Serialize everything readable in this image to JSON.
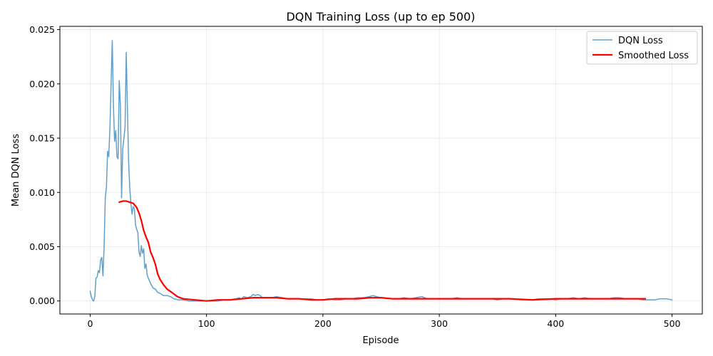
{
  "chart_data": {
    "type": "line",
    "title": "DQN Training Loss (up to ep 500)",
    "xlabel": "Episode",
    "ylabel": "Mean DQN Loss",
    "xlim": [
      -26,
      526
    ],
    "ylim": [
      -0.0012,
      0.0253
    ],
    "x_ticks": [
      0,
      100,
      200,
      300,
      400,
      500
    ],
    "y_ticks": [
      0.0,
      0.005,
      0.01,
      0.015,
      0.02,
      0.025
    ],
    "x_tick_labels": [
      "0",
      "100",
      "200",
      "300",
      "400",
      "500"
    ],
    "y_tick_labels": [
      "0.000",
      "0.005",
      "0.010",
      "0.015",
      "0.020",
      "0.025"
    ],
    "grid": true,
    "legend_position": "top-right",
    "series": [
      {
        "name": "DQN Loss",
        "color": "#1f77b4",
        "opacity": 0.7,
        "width": 1.5,
        "points": [
          [
            0,
            0.0009
          ],
          [
            1,
            0.0004
          ],
          [
            2,
            0.0001
          ],
          [
            3,
            0.0
          ],
          [
            4,
            0.0004
          ],
          [
            5,
            0.0021
          ],
          [
            6,
            0.0022
          ],
          [
            7,
            0.0028
          ],
          [
            8,
            0.0026
          ],
          [
            9,
            0.0038
          ],
          [
            10,
            0.004
          ],
          [
            11,
            0.0023
          ],
          [
            12,
            0.005
          ],
          [
            13,
            0.0095
          ],
          [
            14,
            0.0105
          ],
          [
            15,
            0.0138
          ],
          [
            16,
            0.0133
          ],
          [
            17,
            0.016
          ],
          [
            18,
            0.02
          ],
          [
            19,
            0.024
          ],
          [
            20,
            0.018
          ],
          [
            21,
            0.0147
          ],
          [
            22,
            0.0157
          ],
          [
            23,
            0.0133
          ],
          [
            24,
            0.0131
          ],
          [
            25,
            0.0203
          ],
          [
            26,
            0.018
          ],
          [
            27,
            0.0095
          ],
          [
            28,
            0.014
          ],
          [
            29,
            0.015
          ],
          [
            30,
            0.016
          ],
          [
            31,
            0.0229
          ],
          [
            32,
            0.018
          ],
          [
            33,
            0.013
          ],
          [
            34,
            0.0105
          ],
          [
            35,
            0.009
          ],
          [
            36,
            0.008
          ],
          [
            37,
            0.0087
          ],
          [
            38,
            0.0085
          ],
          [
            39,
            0.007
          ],
          [
            40,
            0.0066
          ],
          [
            41,
            0.0063
          ],
          [
            42,
            0.0045
          ],
          [
            43,
            0.0041
          ],
          [
            44,
            0.0051
          ],
          [
            45,
            0.0044
          ],
          [
            46,
            0.0048
          ],
          [
            47,
            0.003
          ],
          [
            48,
            0.0034
          ],
          [
            49,
            0.0024
          ],
          [
            50,
            0.0021
          ],
          [
            52,
            0.0016
          ],
          [
            54,
            0.0012
          ],
          [
            56,
            0.0011
          ],
          [
            58,
            0.0008
          ],
          [
            60,
            0.0007
          ],
          [
            63,
            0.0005
          ],
          [
            66,
            0.0005
          ],
          [
            69,
            0.0004
          ],
          [
            72,
            0.0002
          ],
          [
            76,
            0.0001
          ],
          [
            80,
            0.0001
          ],
          [
            85,
            0.0
          ],
          [
            90,
            0.0
          ],
          [
            95,
            0.0
          ],
          [
            100,
            0.0
          ],
          [
            105,
            0.0
          ],
          [
            110,
            0.0
          ],
          [
            115,
            0.0001
          ],
          [
            120,
            0.0001
          ],
          [
            125,
            0.0002
          ],
          [
            128,
            0.0003
          ],
          [
            130,
            0.0002
          ],
          [
            132,
            0.0004
          ],
          [
            135,
            0.0003
          ],
          [
            138,
            0.0004
          ],
          [
            140,
            0.0006
          ],
          [
            142,
            0.0005
          ],
          [
            144,
            0.0006
          ],
          [
            146,
            0.0005
          ],
          [
            148,
            0.0003
          ],
          [
            152,
            0.0003
          ],
          [
            156,
            0.0003
          ],
          [
            160,
            0.0004
          ],
          [
            165,
            0.0003
          ],
          [
            170,
            0.0002
          ],
          [
            175,
            0.0002
          ],
          [
            180,
            0.0002
          ],
          [
            185,
            0.0002
          ],
          [
            190,
            0.0002
          ],
          [
            195,
            0.0001
          ],
          [
            200,
            0.0001
          ],
          [
            205,
            0.0002
          ],
          [
            210,
            0.0001
          ],
          [
            215,
            0.0001
          ],
          [
            220,
            0.0002
          ],
          [
            225,
            0.0002
          ],
          [
            230,
            0.0003
          ],
          [
            235,
            0.0003
          ],
          [
            240,
            0.0004
          ],
          [
            243,
            0.0005
          ],
          [
            246,
            0.0004
          ],
          [
            250,
            0.0003
          ],
          [
            255,
            0.0002
          ],
          [
            260,
            0.0002
          ],
          [
            265,
            0.0002
          ],
          [
            270,
            0.0003
          ],
          [
            275,
            0.0002
          ],
          [
            280,
            0.0003
          ],
          [
            285,
            0.0004
          ],
          [
            290,
            0.0002
          ],
          [
            295,
            0.0002
          ],
          [
            300,
            0.0002
          ],
          [
            305,
            0.0002
          ],
          [
            310,
            0.0002
          ],
          [
            315,
            0.0003
          ],
          [
            320,
            0.0002
          ],
          [
            325,
            0.0002
          ],
          [
            330,
            0.0002
          ],
          [
            335,
            0.0002
          ],
          [
            340,
            0.0002
          ],
          [
            345,
            0.0002
          ],
          [
            350,
            0.0001
          ],
          [
            355,
            0.0002
          ],
          [
            360,
            0.0002
          ],
          [
            365,
            0.0002
          ],
          [
            370,
            0.0001
          ],
          [
            375,
            0.0001
          ],
          [
            380,
            0.0001
          ],
          [
            385,
            0.0002
          ],
          [
            390,
            0.0002
          ],
          [
            395,
            0.0002
          ],
          [
            400,
            0.0001
          ],
          [
            405,
            0.0002
          ],
          [
            410,
            0.0002
          ],
          [
            415,
            0.0003
          ],
          [
            420,
            0.0002
          ],
          [
            425,
            0.0003
          ],
          [
            430,
            0.0002
          ],
          [
            435,
            0.0002
          ],
          [
            440,
            0.0002
          ],
          [
            445,
            0.0002
          ],
          [
            450,
            0.0003
          ],
          [
            455,
            0.0003
          ],
          [
            460,
            0.0002
          ],
          [
            465,
            0.0002
          ],
          [
            470,
            0.0002
          ],
          [
            475,
            0.0001
          ],
          [
            480,
            0.0001
          ],
          [
            485,
            0.0001
          ],
          [
            490,
            0.0002
          ],
          [
            495,
            0.0002
          ],
          [
            500,
            0.0001
          ]
        ]
      },
      {
        "name": "Smoothed Loss",
        "color": "#ff0000",
        "opacity": 1.0,
        "width": 2.2,
        "points": [
          [
            25,
            0.0091
          ],
          [
            28,
            0.0092
          ],
          [
            31,
            0.0092
          ],
          [
            34,
            0.0091
          ],
          [
            37,
            0.009
          ],
          [
            40,
            0.0086
          ],
          [
            42,
            0.0081
          ],
          [
            44,
            0.0074
          ],
          [
            46,
            0.0065
          ],
          [
            48,
            0.0059
          ],
          [
            50,
            0.0054
          ],
          [
            52,
            0.0045
          ],
          [
            54,
            0.004
          ],
          [
            56,
            0.0034
          ],
          [
            58,
            0.0025
          ],
          [
            60,
            0.002
          ],
          [
            63,
            0.0015
          ],
          [
            66,
            0.0011
          ],
          [
            70,
            0.0008
          ],
          [
            75,
            0.0004
          ],
          [
            80,
            0.0002
          ],
          [
            90,
            0.0001
          ],
          [
            100,
            0.0
          ],
          [
            110,
            0.0001
          ],
          [
            120,
            0.0001
          ],
          [
            130,
            0.0002
          ],
          [
            140,
            0.0003
          ],
          [
            150,
            0.0003
          ],
          [
            160,
            0.0003
          ],
          [
            170,
            0.0002
          ],
          [
            180,
            0.0002
          ],
          [
            190,
            0.0001
          ],
          [
            200,
            0.0001
          ],
          [
            210,
            0.0002
          ],
          [
            220,
            0.0002
          ],
          [
            230,
            0.0002
          ],
          [
            240,
            0.0003
          ],
          [
            250,
            0.0003
          ],
          [
            260,
            0.0002
          ],
          [
            280,
            0.0002
          ],
          [
            300,
            0.0002
          ],
          [
            320,
            0.0002
          ],
          [
            340,
            0.0002
          ],
          [
            360,
            0.0002
          ],
          [
            380,
            0.0001
          ],
          [
            400,
            0.0002
          ],
          [
            420,
            0.0002
          ],
          [
            440,
            0.0002
          ],
          [
            460,
            0.0002
          ],
          [
            477,
            0.0002
          ]
        ]
      }
    ]
  }
}
